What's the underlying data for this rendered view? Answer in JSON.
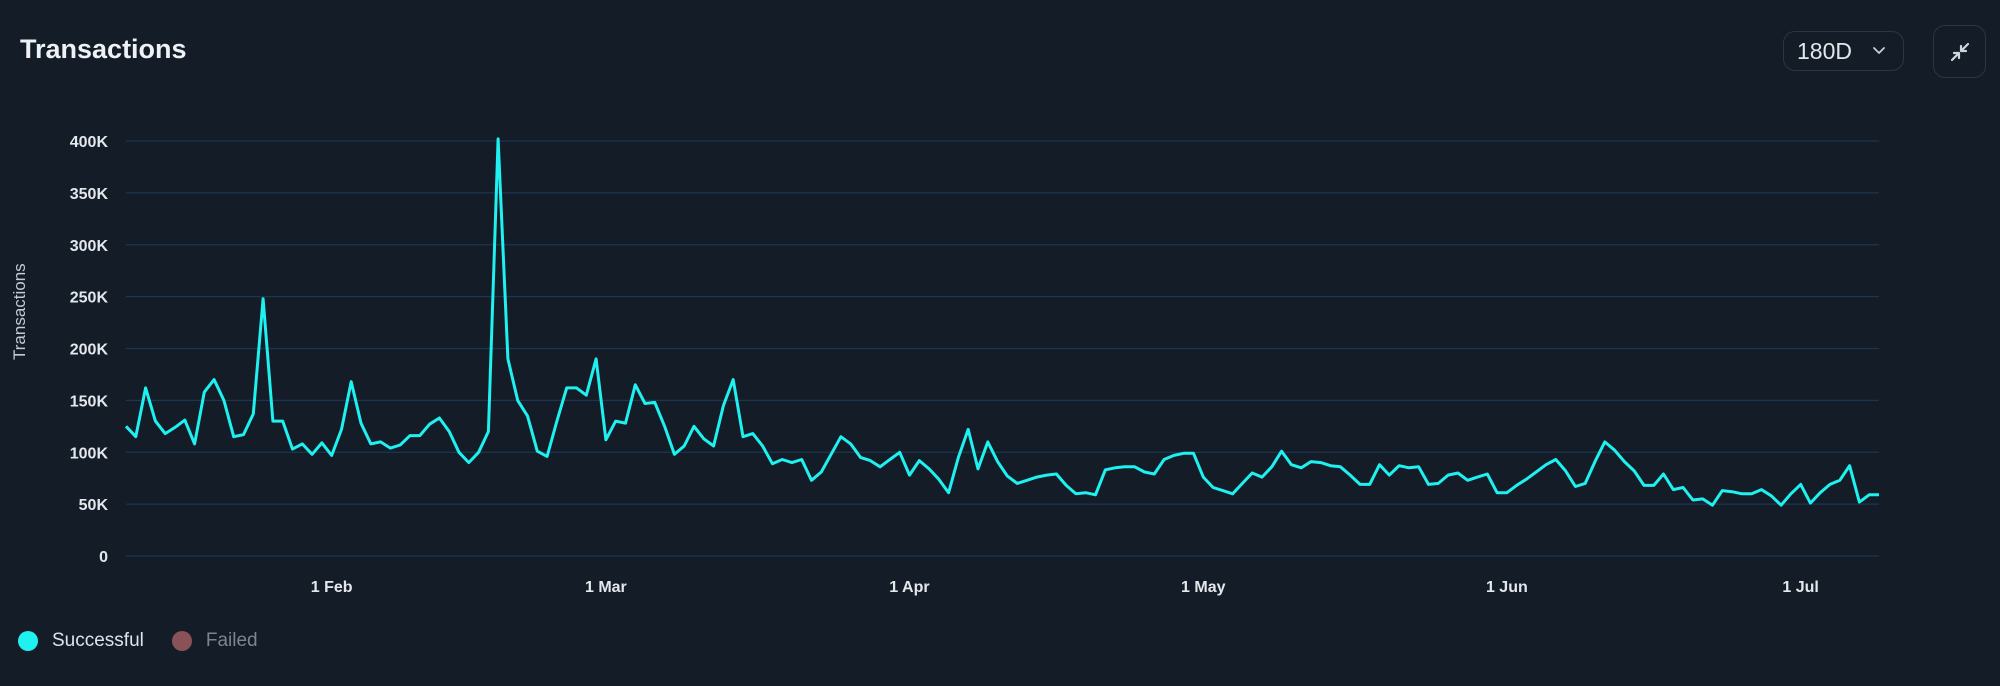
{
  "header": {
    "title": "Transactions",
    "range_select": {
      "value": "180D",
      "icon": "chevron-down-icon"
    },
    "collapse_button": {
      "icon": "minimize-arrows-icon"
    }
  },
  "legend": [
    {
      "label": "Successful",
      "color": "#1ff0f0",
      "active": true
    },
    {
      "label": "Failed",
      "color": "#8a5258",
      "active": false
    }
  ],
  "colors": {
    "background": "#131c27",
    "grid": "#1c3550",
    "series_successful": "#1ff0f0",
    "series_failed": "#8a5258"
  },
  "chart_data": {
    "type": "line",
    "title": "Transactions",
    "xlabel": "",
    "ylabel": "Transactions",
    "ylim": [
      0,
      400000
    ],
    "yticks": [
      0,
      50000,
      100000,
      150000,
      200000,
      250000,
      300000,
      350000,
      400000
    ],
    "ytick_labels": [
      "0",
      "50K",
      "100K",
      "150K",
      "200K",
      "250K",
      "300K",
      "350K",
      "400K"
    ],
    "xtick_labels": [
      "1 Feb",
      "1 Mar",
      "1 Apr",
      "1 May",
      "1 Jun",
      "1 Jul"
    ],
    "xtick_day_index": [
      21,
      49,
      80,
      110,
      141,
      171
    ],
    "x_start": "~11 Jan",
    "x_end": "~9 Jul",
    "grid": true,
    "legend_position": "bottom-left",
    "series": [
      {
        "name": "Successful",
        "color": "#1ff0f0",
        "values_k": [
          125,
          115,
          162,
          130,
          118,
          124,
          131,
          108,
          158,
          170,
          150,
          115,
          117,
          137,
          248,
          130,
          130,
          103,
          108,
          98,
          109,
          97,
          122,
          168,
          128,
          108,
          110,
          104,
          107,
          116,
          116,
          127,
          133,
          120,
          100,
          90,
          100,
          120,
          402,
          190,
          150,
          135,
          101,
          96,
          130,
          162,
          162,
          155,
          190,
          112,
          130,
          128,
          165,
          147,
          148,
          125,
          98,
          106,
          125,
          113,
          106,
          145,
          170,
          115,
          118,
          106,
          89,
          93,
          90,
          93,
          73,
          81,
          98,
          115,
          108,
          95,
          92,
          86,
          93,
          100,
          78,
          92,
          84,
          74,
          61,
          95,
          122,
          84,
          110,
          91,
          77,
          70,
          73,
          76,
          78,
          79,
          68,
          60,
          61,
          59,
          83,
          85,
          86,
          86,
          81,
          79,
          93,
          97,
          99,
          99,
          76,
          66,
          63,
          60,
          70,
          80,
          76,
          86,
          101,
          88,
          85,
          91,
          90,
          87,
          86,
          78,
          69,
          69,
          88,
          78,
          87,
          85,
          86,
          69,
          70,
          78,
          80,
          73,
          76,
          79,
          61,
          61,
          68,
          74,
          81,
          88,
          93,
          82,
          67,
          70,
          91,
          110,
          102,
          91,
          82,
          68,
          68,
          79,
          64,
          66,
          54,
          55,
          49,
          63,
          62,
          60,
          60,
          64,
          58,
          49,
          60,
          69,
          51,
          61,
          69,
          73,
          87,
          52,
          59,
          59
        ]
      },
      {
        "name": "Failed",
        "color": "#8a5258",
        "values_k": []
      }
    ]
  }
}
